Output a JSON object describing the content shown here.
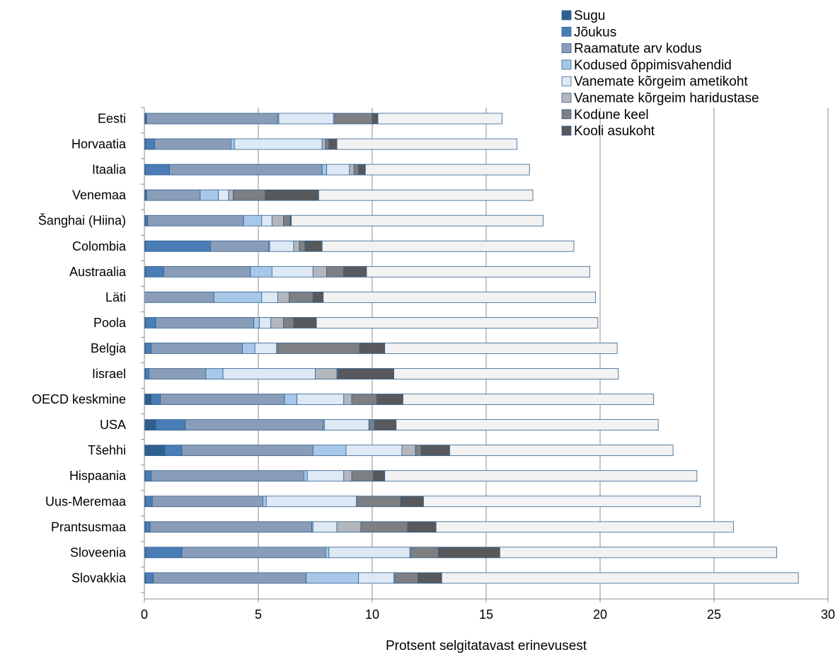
{
  "chart_data": {
    "type": "bar",
    "orientation": "horizontal",
    "stacked": true,
    "title": "",
    "xlabel": "Protsent selgitatavast erinevusest",
    "ylabel": "",
    "xlim": [
      0,
      30
    ],
    "xticks": [
      0,
      5,
      10,
      15,
      20,
      25,
      30
    ],
    "grid": "vertical",
    "legend_position": "top-right",
    "categories": [
      "Eesti",
      "Horvaatia",
      "Itaalia",
      "Venemaa",
      "Šanghai (Hiina)",
      "Colombia",
      "Austraalia",
      "Läti",
      "Poola",
      "Belgia",
      "Iisrael",
      "OECD keskmine",
      "USA",
      "Tšehhi",
      "Hispaania",
      "Uus-Meremaa",
      "Prantsusmaa",
      "Sloveenia",
      "Slovakkia"
    ],
    "series": [
      {
        "name": "Sugu",
        "color": "#2f5f8f",
        "values": [
          0.05,
          0.05,
          0.05,
          0.05,
          0.05,
          0.05,
          0.05,
          0.0,
          0.05,
          0.05,
          0.05,
          0.3,
          0.5,
          0.9,
          0.05,
          0.05,
          0.05,
          0.05,
          0.05
        ]
      },
      {
        "name": "Jõukus",
        "color": "#4a7db5",
        "values": [
          0.05,
          0.4,
          1.05,
          0.05,
          0.1,
          2.85,
          0.8,
          0.0,
          0.45,
          0.25,
          0.15,
          0.4,
          1.3,
          0.75,
          0.25,
          0.3,
          0.2,
          1.6,
          0.35
        ]
      },
      {
        "name": "Raamatute arv kodus",
        "color": "#8a9db8",
        "values": [
          5.75,
          3.35,
          6.7,
          2.35,
          4.2,
          2.55,
          3.8,
          3.05,
          4.3,
          4.0,
          2.5,
          5.45,
          6.05,
          5.75,
          6.7,
          4.85,
          7.1,
          6.3,
          6.7
        ]
      },
      {
        "name": "Kodused õppimisvahendid",
        "color": "#a7c8e8",
        "values": [
          0.05,
          0.15,
          0.2,
          0.8,
          0.8,
          0.05,
          0.95,
          2.1,
          0.25,
          0.55,
          0.75,
          0.55,
          0.05,
          1.45,
          0.15,
          0.15,
          0.05,
          0.15,
          2.3
        ]
      },
      {
        "name": "Vanemate kõrgeim ametikoht",
        "color": "#dde9f5",
        "values": [
          2.4,
          3.85,
          1.0,
          0.45,
          0.45,
          1.05,
          1.8,
          0.7,
          0.5,
          0.95,
          4.05,
          2.05,
          1.95,
          2.45,
          1.6,
          3.95,
          1.05,
          3.55,
          1.55
        ]
      },
      {
        "name": "Vanemate kõrgeim haridustase",
        "color": "#b3b7bc",
        "values": [
          0.05,
          0.15,
          0.2,
          0.2,
          0.5,
          0.25,
          0.6,
          0.5,
          0.55,
          0.05,
          0.95,
          0.35,
          0.05,
          0.6,
          0.35,
          0.05,
          1.05,
          0.05,
          0.05
        ]
      },
      {
        "name": "Kodune keel",
        "color": "#7d7f82",
        "values": [
          1.65,
          0.15,
          0.2,
          1.4,
          0.3,
          0.25,
          0.75,
          1.05,
          0.45,
          3.6,
          0.05,
          1.1,
          0.2,
          0.25,
          0.95,
          1.9,
          2.05,
          1.2,
          1.0
        ]
      },
      {
        "name": "Kooli asukoht",
        "color": "#57595c",
        "values": [
          0.25,
          0.35,
          0.3,
          2.35,
          0.05,
          0.75,
          1.0,
          0.45,
          1.0,
          1.1,
          2.45,
          1.15,
          0.95,
          1.25,
          0.5,
          1.0,
          1.25,
          2.7,
          1.05
        ]
      },
      {
        "name": "",
        "color": "#f2f2f2",
        "values": [
          5.45,
          7.9,
          7.2,
          9.4,
          11.05,
          11.05,
          9.8,
          11.95,
          12.35,
          10.2,
          9.85,
          11.0,
          11.5,
          9.8,
          13.7,
          12.15,
          13.05,
          12.15,
          15.65
        ]
      }
    ],
    "legend": [
      "Sugu",
      "Jõukus",
      "Raamatute arv kodus",
      "Kodused õppimisvahendid",
      "Vanemate kõrgeim ametikoht",
      "Vanemate kõrgeim haridustase",
      "Kodune keel",
      "Kooli asukoht"
    ]
  }
}
